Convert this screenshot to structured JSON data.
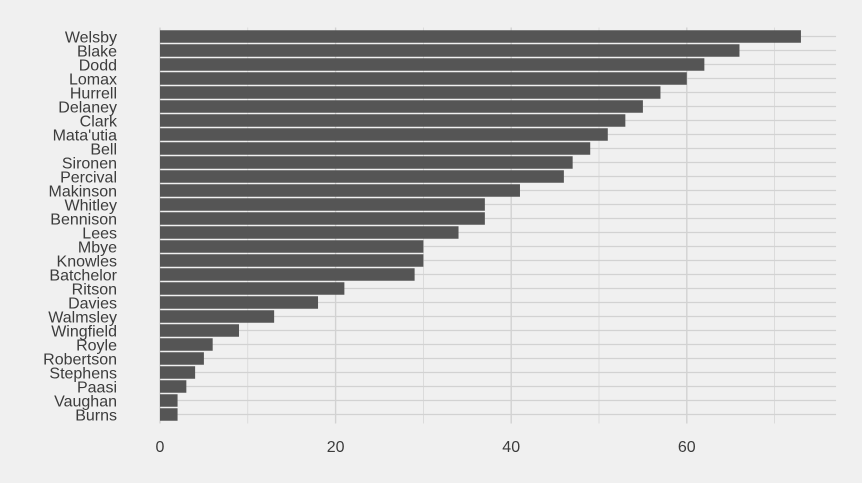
{
  "chart_data": {
    "type": "bar",
    "orientation": "horizontal",
    "title": "",
    "xlabel": "",
    "ylabel": "",
    "categories": [
      "Welsby",
      "Blake",
      "Dodd",
      "Lomax",
      "Hurrell",
      "Delaney",
      "Clark",
      "Mata'utia",
      "Bell",
      "Sironen",
      "Percival",
      "Makinson",
      "Whitley",
      "Bennison",
      "Lees",
      "Mbye",
      "Knowles",
      "Batchelor",
      "Ritson",
      "Davies",
      "Walmsley",
      "Wingfield",
      "Royle",
      "Robertson",
      "Stephens",
      "Paasi",
      "Vaughan",
      "Burns"
    ],
    "values": [
      73,
      66,
      62,
      60,
      57,
      55,
      53,
      51,
      49,
      47,
      46,
      41,
      37,
      37,
      34,
      30,
      30,
      29,
      21,
      18,
      13,
      9,
      6,
      5,
      4,
      3,
      2,
      2
    ],
    "xlim": [
      0,
      77
    ],
    "xticks": [
      0,
      20,
      40,
      60
    ],
    "grid": true,
    "bar_color": "#555555",
    "grid_color": "#d2d2d2",
    "background_color": "#f0f0f0"
  }
}
